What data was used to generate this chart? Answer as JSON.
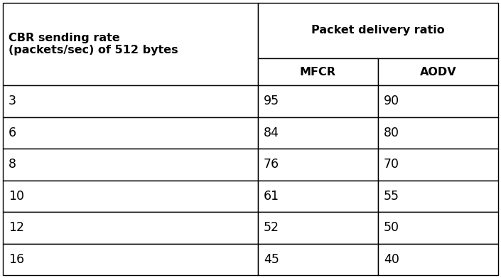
{
  "col1_header_line1": "CBR sending rate",
  "col1_header_line2": "(packets/sec) of 512 bytes",
  "col2_header_main": "Packet delivery ratio",
  "col2_sub1": "MFCR",
  "col2_sub2": "AODV",
  "rows": [
    [
      "3",
      "95",
      "90"
    ],
    [
      "6",
      "84",
      "80"
    ],
    [
      "8",
      "76",
      "70"
    ],
    [
      "10",
      "61",
      "55"
    ],
    [
      "12",
      "52",
      "50"
    ],
    [
      "16",
      "45",
      "40"
    ]
  ],
  "background_color": "#ffffff",
  "border_color": "#000000",
  "text_color": "#000000",
  "font_size_header": 11.5,
  "font_size_body": 12.5,
  "figwidth": 7.05,
  "figheight": 3.91,
  "dpi": 100
}
